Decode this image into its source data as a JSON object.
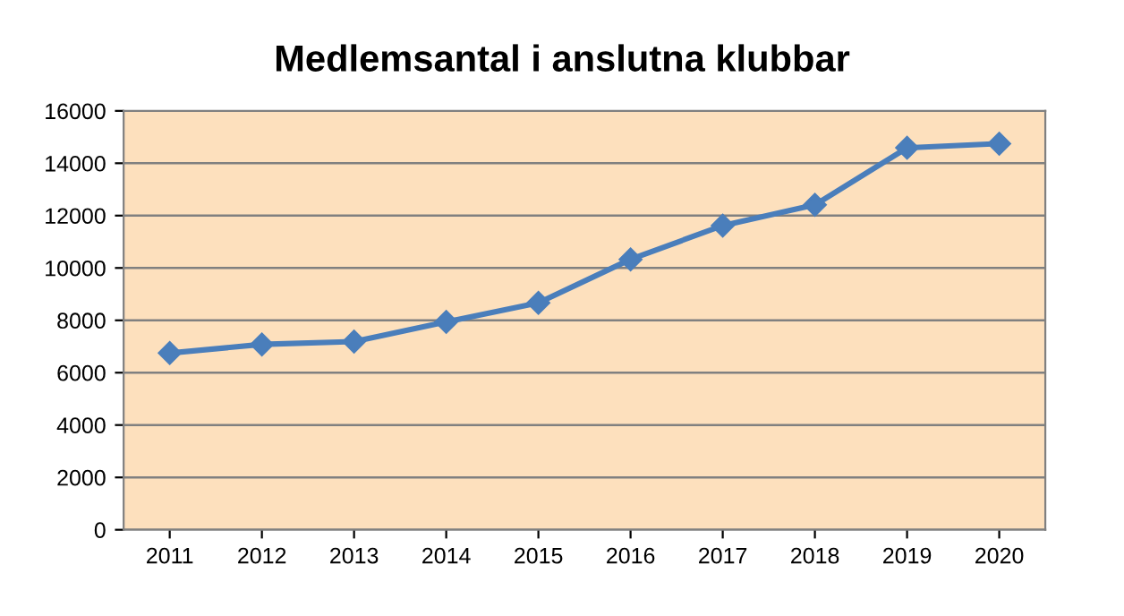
{
  "chart_data": {
    "type": "line",
    "title": "Medlemsantal i anslutna klubbar",
    "categories": [
      "2011",
      "2012",
      "2013",
      "2014",
      "2015",
      "2016",
      "2017",
      "2018",
      "2019",
      "2020"
    ],
    "series": [
      {
        "color": "#4a7ebb",
        "values": [
          6750,
          7080,
          7190,
          7940,
          8670,
          10330,
          11620,
          12410,
          14590,
          14750
        ]
      }
    ],
    "ylim": [
      0,
      16000
    ],
    "yticks": [
      0,
      2000,
      4000,
      6000,
      8000,
      10000,
      12000,
      14000,
      16000
    ],
    "grid": "y",
    "legend": false,
    "marker": "diamond",
    "line_style": "solid"
  }
}
